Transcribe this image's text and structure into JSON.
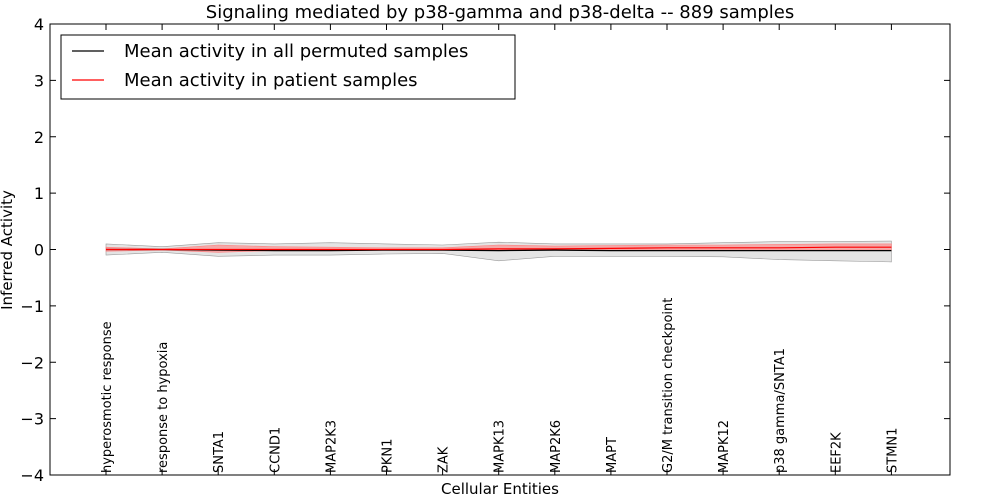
{
  "chart_data": {
    "type": "line",
    "title": "Signaling mediated by p38-gamma and p38-delta -- 889 samples",
    "xlabel": "Cellular Entities",
    "ylabel": "Inferred Activity",
    "ylim": [
      -4,
      4
    ],
    "yticks": [
      4,
      3,
      2,
      1,
      0,
      -1,
      -2,
      -3,
      -4
    ],
    "ytick_labels": [
      "4",
      "3",
      "2",
      "1",
      "0",
      "−1",
      "−2",
      "−3",
      "−4"
    ],
    "categories": [
      "hyperosmotic response",
      "response to hypoxia",
      "SNTA1",
      "CCND1",
      "MAP2K3",
      "PKN1",
      "ZAK",
      "MAPK13",
      "MAP2K6",
      "MAPT",
      "G2/M transition checkpoint",
      "MAPK12",
      "p38 gamma/SNTA1",
      "EEF2K",
      "STMN1"
    ],
    "legend_position": "top-left",
    "colors": {
      "permuted_line": "#000000",
      "permuted_band": "#d9d9d9",
      "patient_line": "#ff0000",
      "patient_band": "#ff8080"
    },
    "series": [
      {
        "name": "Mean activity in all permuted samples",
        "values": [
          0,
          0,
          -0.01,
          -0.02,
          -0.02,
          -0.01,
          -0.01,
          -0.02,
          -0.01,
          -0.02,
          -0.02,
          -0.02,
          -0.02,
          -0.02,
          -0.02
        ],
        "band_lower": [
          -0.1,
          -0.05,
          -0.12,
          -0.1,
          -0.1,
          -0.08,
          -0.07,
          -0.2,
          -0.12,
          -0.12,
          -0.12,
          -0.13,
          -0.18,
          -0.2,
          -0.22
        ],
        "band_upper": [
          0.1,
          0.05,
          0.12,
          0.1,
          0.12,
          0.1,
          0.08,
          0.13,
          0.1,
          0.1,
          0.1,
          0.12,
          0.14,
          0.14,
          0.15
        ]
      },
      {
        "name": "Mean activity in patient samples",
        "values": [
          0,
          0,
          0,
          0,
          0,
          0,
          0,
          0.01,
          0.01,
          0.02,
          0.03,
          0.03,
          0.03,
          0.04,
          0.04
        ],
        "band_lower": [
          -0.03,
          -0.01,
          -0.05,
          -0.02,
          -0.02,
          -0.01,
          -0.01,
          -0.01,
          -0.01,
          -0.01,
          -0.01,
          -0.01,
          -0.01,
          -0.01,
          -0.01
        ],
        "band_upper": [
          0.04,
          0.01,
          0.08,
          0.05,
          0.04,
          0.03,
          0.03,
          0.08,
          0.06,
          0.07,
          0.08,
          0.08,
          0.09,
          0.1,
          0.1
        ]
      }
    ]
  }
}
